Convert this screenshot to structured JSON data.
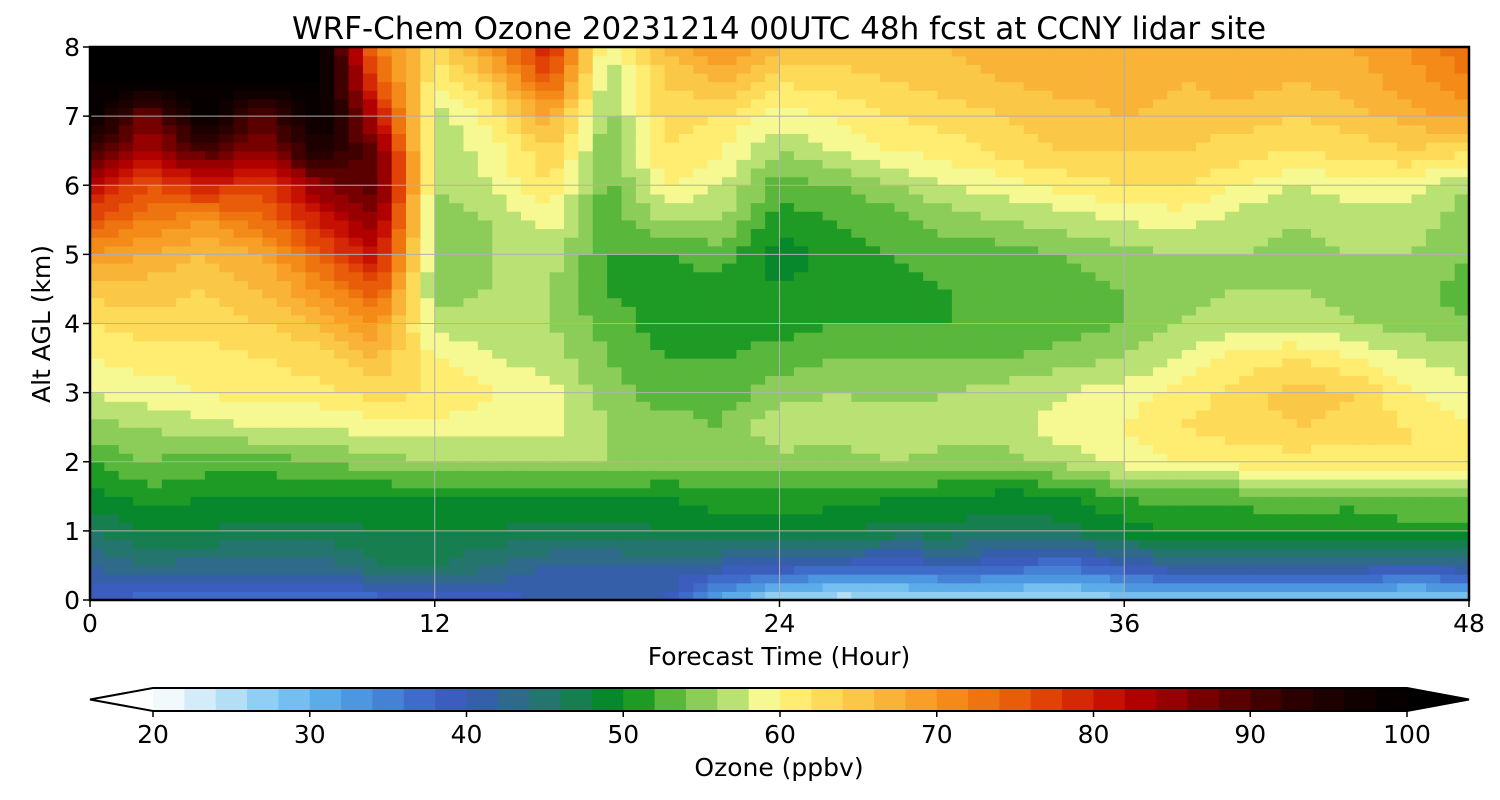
{
  "chart_data": {
    "type": "heatmap",
    "title": "WRF-Chem Ozone  20231214 00UTC 48h fcst at CCNY lidar site",
    "xlabel": "Forecast Time (Hour)",
    "ylabel": "Alt AGL (km)",
    "xlim": [
      0,
      48
    ],
    "ylim": [
      0,
      8
    ],
    "xticks": [
      0,
      12,
      24,
      36,
      48
    ],
    "yticks": [
      0,
      1,
      2,
      3,
      4,
      5,
      6,
      7,
      8
    ],
    "grid": true,
    "x": [
      0,
      2,
      4,
      6,
      8,
      10,
      12,
      14,
      16,
      18,
      20,
      22,
      24,
      26,
      28,
      30,
      32,
      34,
      36,
      38,
      40,
      42,
      44,
      46,
      48
    ],
    "y": [
      0,
      0.5,
      1,
      1.5,
      2,
      2.5,
      3,
      3.5,
      4,
      4.5,
      5,
      5.5,
      6,
      6.5,
      7,
      7.5,
      8
    ],
    "z": [
      [
        38,
        37,
        37,
        36,
        36,
        37,
        39,
        39,
        40,
        41,
        40,
        31,
        25,
        24,
        25,
        25,
        26,
        25,
        27,
        28,
        27,
        28,
        27,
        26,
        27
      ],
      [
        42,
        44,
        43,
        43,
        43,
        46,
        46,
        44,
        42,
        42,
        42,
        41,
        40,
        39,
        38,
        40,
        38,
        36,
        40,
        42,
        42,
        43,
        42,
        41,
        42
      ],
      [
        46,
        48,
        48,
        47,
        47,
        48,
        48,
        48,
        47,
        47,
        48,
        49,
        49,
        48,
        47,
        47,
        46,
        47,
        49,
        50,
        50,
        51,
        50,
        51,
        51
      ],
      [
        49,
        51,
        50,
        50,
        50,
        50,
        50,
        50,
        50,
        50,
        50,
        51,
        51,
        51,
        50,
        50,
        49,
        50,
        52,
        53,
        53,
        53,
        53,
        54,
        54
      ],
      [
        52,
        54,
        53,
        53,
        54,
        55,
        56,
        56,
        56,
        56,
        55,
        55,
        55,
        55,
        56,
        55,
        55,
        57,
        59,
        60,
        61,
        61,
        61,
        62,
        62
      ],
      [
        55,
        56,
        57,
        58,
        58,
        59,
        59,
        59,
        59,
        56,
        55,
        54,
        58,
        57,
        58,
        57,
        57,
        59,
        60,
        62,
        63,
        64,
        63,
        62,
        60
      ],
      [
        58,
        59,
        60,
        61,
        61,
        63,
        62,
        60,
        59,
        55,
        53,
        53,
        55,
        56,
        55,
        56,
        57,
        58,
        59,
        61,
        63,
        65,
        64,
        60,
        59
      ],
      [
        60,
        61,
        61,
        62,
        63,
        66,
        60,
        58,
        57,
        54,
        52,
        52,
        53,
        54,
        54,
        54,
        54,
        55,
        56,
        58,
        61,
        62,
        60,
        58,
        57
      ],
      [
        62,
        63,
        63,
        64,
        66,
        70,
        57,
        57,
        56,
        53,
        51,
        51,
        51,
        52,
        52,
        52,
        52,
        53,
        54,
        56,
        57,
        57,
        56,
        55,
        54
      ],
      [
        65,
        65,
        64,
        66,
        70,
        76,
        55,
        56,
        56,
        52,
        51,
        51,
        50,
        51,
        51,
        52,
        52,
        53,
        54,
        55,
        56,
        56,
        55,
        55,
        53
      ],
      [
        70,
        68,
        66,
        68,
        75,
        82,
        55,
        56,
        57,
        52,
        52,
        53,
        49,
        51,
        52,
        53,
        53,
        54,
        55,
        56,
        56,
        55,
        56,
        56,
        54
      ],
      [
        76,
        72,
        70,
        73,
        80,
        86,
        55,
        56,
        59,
        53,
        56,
        56,
        51,
        52,
        53,
        55,
        56,
        57,
        58,
        59,
        57,
        56,
        57,
        57,
        55
      ],
      [
        82,
        76,
        80,
        77,
        86,
        90,
        56,
        58,
        62,
        53,
        60,
        58,
        53,
        54,
        56,
        58,
        59,
        61,
        62,
        62,
        60,
        58,
        59,
        59,
        56
      ],
      [
        92,
        83,
        90,
        85,
        95,
        88,
        56,
        59,
        64,
        54,
        62,
        60,
        56,
        58,
        60,
        61,
        63,
        64,
        64,
        64,
        63,
        62,
        63,
        64,
        62
      ],
      [
        100,
        86,
        100,
        88,
        100,
        82,
        57,
        61,
        68,
        55,
        63,
        62,
        59,
        60,
        62,
        63,
        64,
        65,
        66,
        65,
        65,
        64,
        65,
        67,
        69
      ],
      [
        100,
        100,
        100,
        100,
        100,
        76,
        60,
        65,
        76,
        56,
        64,
        66,
        62,
        63,
        64,
        65,
        66,
        67,
        67,
        66,
        67,
        66,
        67,
        69,
        72
      ],
      [
        100,
        100,
        100,
        100,
        100,
        72,
        63,
        70,
        80,
        58,
        66,
        70,
        66,
        65,
        66,
        66,
        67,
        68,
        68,
        67,
        68,
        67,
        68,
        70,
        74
      ]
    ],
    "colorbar": {
      "label": "Ozone  (ppbv)",
      "min": 20,
      "max": 100,
      "step": 2,
      "ticks": [
        20,
        30,
        40,
        50,
        60,
        70,
        80,
        90,
        100
      ],
      "extend": "both",
      "colors": [
        "#ffffff",
        "#dcf0fb",
        "#b4def6",
        "#88caf2",
        "#66b7ef",
        "#4e9ce2",
        "#4581d5",
        "#3d66c8",
        "#3a59b8",
        "#2f6a8a",
        "#1f7a60",
        "#008c1a",
        "#4cb235",
        "#8ccd5a",
        "#c4e67a",
        "#f6f891",
        "#fff57f",
        "#fde05c",
        "#fbc746",
        "#f9ae33",
        "#f6951d",
        "#f07a10",
        "#e85c0a",
        "#df3d06",
        "#cf1a02",
        "#b80000",
        "#960000",
        "#6e0000",
        "#4c0000",
        "#2a0000",
        "#160000",
        "#000000"
      ],
      "color_values": [
        20,
        22.5,
        25,
        27.5,
        30,
        32.5,
        35,
        37.5,
        40,
        43,
        46,
        50,
        52.5,
        55,
        57.5,
        59,
        60,
        62.5,
        65,
        67.5,
        70,
        72.5,
        75,
        77.5,
        80,
        82.5,
        85,
        87.5,
        90,
        93,
        96,
        100
      ]
    }
  }
}
